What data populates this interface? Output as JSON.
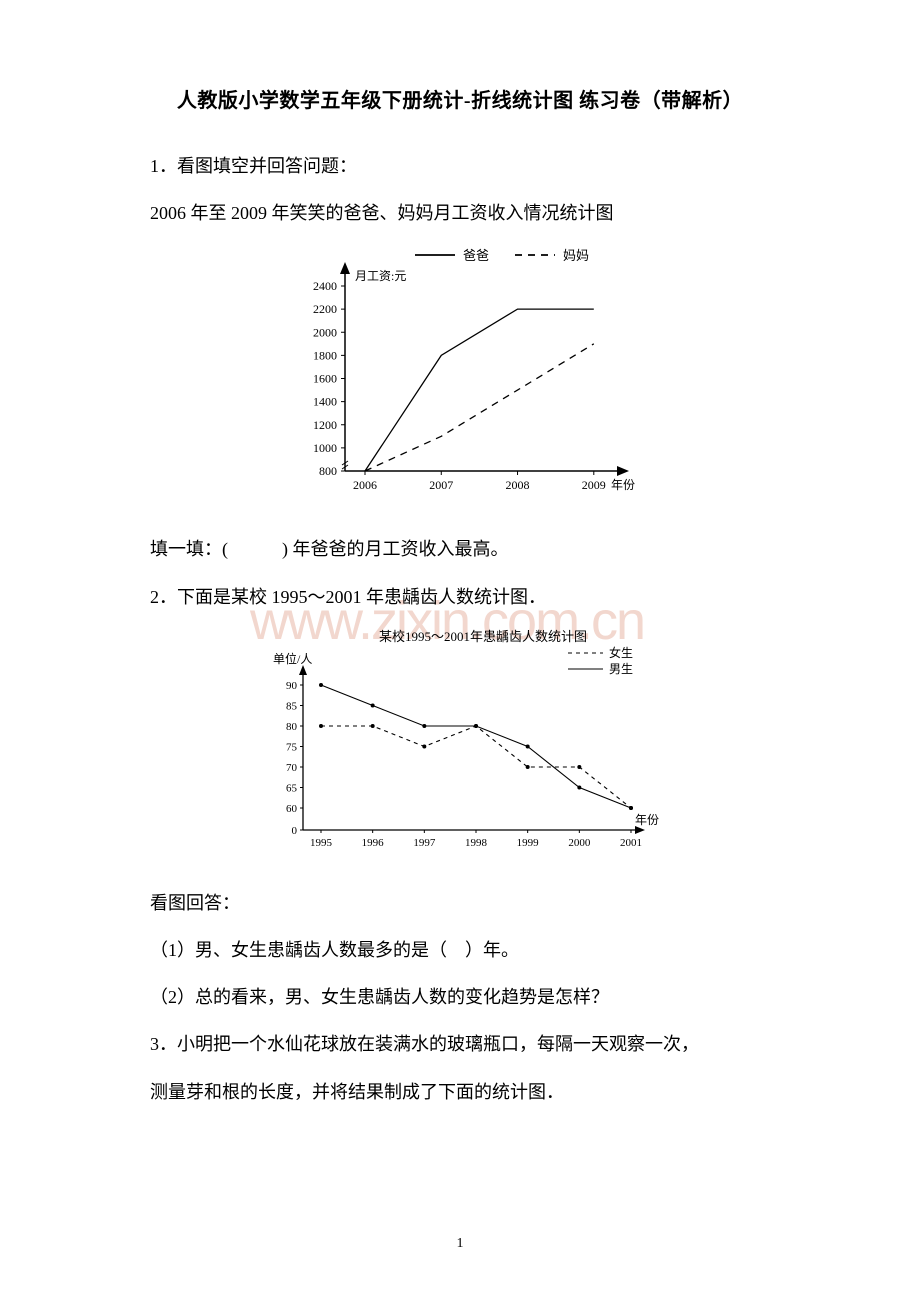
{
  "title": "人教版小学数学五年级下册统计-折线统计图 练习卷（带解析）",
  "q1": {
    "text": "1．看图填空并回答问题：",
    "subtitle": "2006 年至 2009 年笑笑的爸爸、妈妈月工资收入情况统计图",
    "chart": {
      "legend": {
        "dad": "爸爸",
        "mom": "妈妈"
      },
      "ylabel": "月工资:元",
      "xlabel": "年份",
      "years": [
        "2006",
        "2007",
        "2008",
        "2009"
      ],
      "yticks": [
        800,
        1000,
        1200,
        1400,
        1600,
        1800,
        2000,
        2200,
        2400
      ],
      "dad_values": [
        800,
        1800,
        2200,
        2200
      ],
      "mom_values": [
        800,
        1100,
        1500,
        1900
      ],
      "colors": {
        "axis": "#000000",
        "dad_line": "#000000",
        "mom_line": "#000000",
        "text": "#000000"
      },
      "line_width": 1.3,
      "font_size": 12
    },
    "fill": "填一填：(　　　) 年爸爸的月工资收入最高。"
  },
  "q2": {
    "text": "2．下面是某校 1995～2001 年患龋齿人数统计图．",
    "chart": {
      "title": "某校1995～2001年患龋齿人数统计图",
      "legend": {
        "girl": "女生",
        "boy": "男生"
      },
      "ylabel_unit": "单位/人",
      "xlabel": "年份",
      "years": [
        "1995",
        "1996",
        "1997",
        "1998",
        "1999",
        "2000",
        "2001"
      ],
      "yticks": [
        0,
        60,
        65,
        70,
        75,
        80,
        85,
        90
      ],
      "boy_values": [
        90,
        85,
        80,
        80,
        75,
        65,
        60
      ],
      "girl_values": [
        80,
        80,
        75,
        80,
        70,
        70,
        60
      ],
      "colors": {
        "axis": "#000000",
        "line": "#000000",
        "text": "#000000"
      },
      "line_width": 1.1,
      "font_size": 12
    },
    "sub1": "看图回答：",
    "sub2": "（1）男、女生患龋齿人数最多的是（　）年。",
    "sub3": "（2）总的看来，男、女生患龋齿人数的变化趋势是怎样？"
  },
  "q3": {
    "line1": "3．小明把一个水仙花球放在装满水的玻璃瓶口，每隔一天观察一次，",
    "line2": "测量芽和根的长度，并将结果制成了下面的统计图．"
  },
  "watermark": "www.zixin.com.cn",
  "page_num": "1"
}
